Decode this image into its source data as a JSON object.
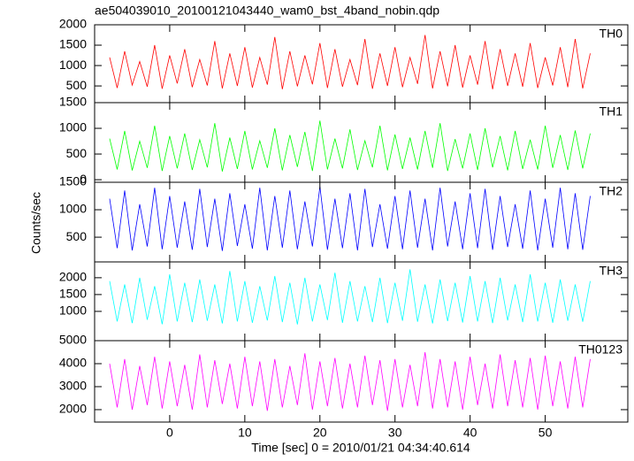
{
  "title": "ae504039010_20100121043440_wam0_bst_4band_nobin.qdp",
  "xlabel": "Time [sec] 0 = 2010/01/21 04:34:40.614",
  "ylabel": "Counts/sec",
  "xlim": [
    -10,
    61
  ],
  "xticks": [
    0,
    10,
    20,
    30,
    40,
    50
  ],
  "x": [
    -8,
    -7,
    -6,
    -5,
    -4,
    -3,
    -2,
    -1,
    0,
    1,
    2,
    3,
    4,
    5,
    6,
    7,
    8,
    9,
    10,
    11,
    12,
    13,
    14,
    15,
    16,
    17,
    18,
    19,
    20,
    21,
    22,
    23,
    24,
    25,
    26,
    27,
    28,
    29,
    30,
    31,
    32,
    33,
    34,
    35,
    36,
    37,
    38,
    39,
    40,
    41,
    42,
    43,
    44,
    45,
    46,
    47,
    48,
    49,
    50,
    51,
    52,
    53,
    54,
    55,
    56
  ],
  "chart_data": [
    {
      "type": "line",
      "ylim": [
        90,
        2000
      ],
      "yticks": [
        500,
        1000,
        1500,
        2000
      ],
      "series": [
        {
          "name": "TH0",
          "color": "#ff0000",
          "values": [
            1200,
            450,
            1350,
            520,
            1100,
            480,
            1500,
            430,
            1250,
            560,
            1400,
            470,
            1150,
            510,
            1600,
            440,
            1300,
            500,
            1450,
            460,
            1200,
            530,
            1700,
            420,
            1350,
            490,
            1250,
            540,
            1550,
            450,
            1400,
            480,
            1150,
            520,
            1650,
            430,
            1300,
            500,
            1450,
            470,
            1200,
            550,
            1750,
            440,
            1350,
            490,
            1500,
            460,
            1250,
            530,
            1600,
            420,
            1400,
            500,
            1300,
            480,
            1550,
            450,
            1200,
            510,
            1450,
            470,
            1650,
            440,
            1300
          ]
        }
      ]
    },
    {
      "type": "line",
      "ylim": [
        -50,
        1500
      ],
      "yticks": [
        0,
        500,
        1000,
        1500
      ],
      "series": [
        {
          "name": "TH1",
          "color": "#00ff00",
          "values": [
            800,
            200,
            950,
            180,
            750,
            230,
            1050,
            170,
            850,
            220,
            900,
            190,
            780,
            240,
            1100,
            160,
            820,
            210,
            950,
            200,
            760,
            230,
            1000,
            180,
            870,
            250,
            930,
            170,
            1150,
            200,
            800,
            220,
            980,
            190,
            760,
            240,
            1050,
            180,
            880,
            210,
            820,
            200,
            950,
            230,
            1100,
            170,
            790,
            220,
            900,
            190,
            1000,
            240,
            850,
            180,
            950,
            210,
            780,
            200,
            1050,
            230,
            870,
            190,
            960,
            220,
            900
          ]
        }
      ]
    },
    {
      "type": "line",
      "ylim": [
        50,
        1500
      ],
      "yticks": [
        500,
        1000,
        1500
      ],
      "series": [
        {
          "name": "TH2",
          "color": "#0000ff",
          "values": [
            1200,
            300,
            1350,
            260,
            1100,
            330,
            1400,
            280,
            1250,
            310,
            1150,
            270,
            1380,
            320,
            1200,
            250,
            1300,
            340,
            1100,
            290,
            1400,
            260,
            1250,
            310,
            1350,
            280,
            1150,
            330,
            1420,
            270,
            1200,
            300,
            1300,
            260,
            1380,
            320,
            1100,
            290,
            1250,
            280,
            1350,
            310,
            1200,
            260,
            1400,
            330,
            1150,
            280,
            1300,
            300,
            1380,
            270,
            1250,
            320,
            1100,
            290,
            1350,
            260,
            1200,
            310,
            1400,
            280,
            1300,
            270,
            1250
          ]
        }
      ]
    },
    {
      "type": "line",
      "ylim": [
        130,
        2470
      ],
      "yticks": [
        1000,
        1500,
        2000
      ],
      "series": [
        {
          "name": "TH3",
          "color": "#00ffff",
          "values": [
            1900,
            700,
            1800,
            650,
            2000,
            750,
            1750,
            620,
            2100,
            700,
            1850,
            680,
            1950,
            720,
            1800,
            640,
            2200,
            700,
            1900,
            660,
            1750,
            730,
            2050,
            680,
            1850,
            610,
            2000,
            700,
            1800,
            740,
            2150,
            660,
            1900,
            700,
            1750,
            680,
            2000,
            650,
            1850,
            720,
            2250,
            690,
            1800,
            640,
            1950,
            710,
            1850,
            670,
            2050,
            700,
            1900,
            650,
            2000,
            730,
            1800,
            680,
            2100,
            700,
            1850,
            660,
            1950,
            720,
            1800,
            690,
            1900
          ]
        }
      ]
    },
    {
      "type": "line",
      "ylim": [
        1460,
        5000
      ],
      "yticks": [
        2000,
        3000,
        4000,
        5000
      ],
      "series": [
        {
          "name": "TH0123",
          "color": "#ff00ff",
          "values": [
            4000,
            2100,
            4200,
            2000,
            3900,
            2200,
            4300,
            2050,
            4100,
            2150,
            3950,
            2000,
            4400,
            2100,
            4150,
            2250,
            4000,
            2050,
            4300,
            2150,
            4100,
            1950,
            4200,
            2100,
            3900,
            2200,
            4450,
            2000,
            4100,
            2150,
            4250,
            2050,
            4000,
            2100,
            4350,
            2200,
            4150,
            1950,
            4200,
            2100,
            3950,
            2150,
            4500,
            2050,
            4200,
            2100,
            4100,
            2000,
            4300,
            2200,
            4000,
            2050,
            4400,
            2150,
            4150,
            2100,
            4250,
            2000,
            4350,
            2150,
            4100,
            2050,
            4300,
            2100,
            4200
          ]
        }
      ]
    }
  ]
}
